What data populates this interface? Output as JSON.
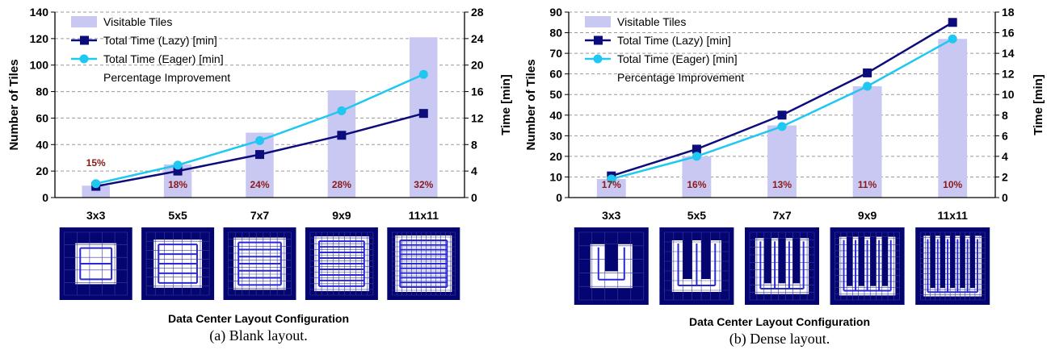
{
  "chart_data": [
    {
      "type": "bar",
      "subcaption": "(a) Blank layout.",
      "xlabel": "Data Center Layout Configuration",
      "ylabel": "Number of Tiles",
      "y2label": "Time [min]",
      "ylim": [
        0,
        140
      ],
      "y2lim": [
        0,
        28
      ],
      "yticks": [
        0,
        20,
        40,
        60,
        80,
        100,
        120,
        140
      ],
      "y2ticks": [
        0,
        4,
        8,
        12,
        16,
        20,
        24,
        28
      ],
      "grid": true,
      "legend_position": "top-left",
      "categories": [
        "3x3",
        "5x5",
        "7x7",
        "9x9",
        "11x11"
      ],
      "series": [
        {
          "name": "Visitable Tiles",
          "kind": "bar",
          "axis": "left",
          "color": "#c8c8f2",
          "values": [
            9,
            25,
            49,
            81,
            121
          ]
        },
        {
          "name": "Total Time (Lazy) [min]",
          "kind": "line",
          "axis": "right",
          "marker": "square",
          "color": "#0c0c7c",
          "values": [
            1.7,
            4.0,
            6.5,
            9.4,
            12.7
          ]
        },
        {
          "name": "Total Time (Eager) [min]",
          "kind": "line",
          "axis": "right",
          "marker": "circle",
          "color": "#1ec8f0",
          "values": [
            2.1,
            4.9,
            8.6,
            13.1,
            18.6
          ]
        }
      ],
      "improvement_label": "Percentage Improvement",
      "improvement_color": "#8b1a1a",
      "improvements": [
        "15%",
        "18%",
        "24%",
        "28%",
        "32%"
      ],
      "thumbnails": [
        {
          "pattern": "blank",
          "n": 3
        },
        {
          "pattern": "blank",
          "n": 5
        },
        {
          "pattern": "blank",
          "n": 7
        },
        {
          "pattern": "blank",
          "n": 9
        },
        {
          "pattern": "blank",
          "n": 11
        }
      ]
    },
    {
      "type": "bar",
      "subcaption": "(b) Dense layout.",
      "xlabel": "Data Center Layout Configuration",
      "ylabel": "Number of Tiles",
      "y2label": "Time [min]",
      "ylim": [
        0,
        90
      ],
      "y2lim": [
        0,
        18
      ],
      "yticks": [
        0,
        10,
        20,
        30,
        40,
        50,
        60,
        70,
        80,
        90
      ],
      "y2ticks": [
        0,
        2,
        4,
        6,
        8,
        10,
        12,
        14,
        16,
        18
      ],
      "grid": true,
      "legend_position": "top-left",
      "categories": [
        "3x3",
        "5x5",
        "7x7",
        "9x9",
        "11x11"
      ],
      "series": [
        {
          "name": "Visitable Tiles",
          "kind": "bar",
          "axis": "left",
          "color": "#c8c8f2",
          "values": [
            9,
            20,
            35,
            54,
            77
          ]
        },
        {
          "name": "Total Time (Lazy) [min]",
          "kind": "line",
          "axis": "right",
          "marker": "square",
          "color": "#0c0c7c",
          "values": [
            2.1,
            4.7,
            8.0,
            12.1,
            17.0
          ]
        },
        {
          "name": "Total Time (Eager) [min]",
          "kind": "line",
          "axis": "right",
          "marker": "circle",
          "color": "#1ec8f0",
          "values": [
            1.8,
            4.0,
            6.9,
            10.8,
            15.4
          ]
        }
      ],
      "improvement_label": "Percentage Improvement",
      "improvement_color": "#8b1a1a",
      "improvements": [
        "17%",
        "16%",
        "13%",
        "11%",
        "10%"
      ],
      "thumbnails": [
        {
          "pattern": "dense",
          "n": 3
        },
        {
          "pattern": "dense",
          "n": 5
        },
        {
          "pattern": "dense",
          "n": 7
        },
        {
          "pattern": "dense",
          "n": 9
        },
        {
          "pattern": "dense",
          "n": 11
        }
      ]
    }
  ]
}
